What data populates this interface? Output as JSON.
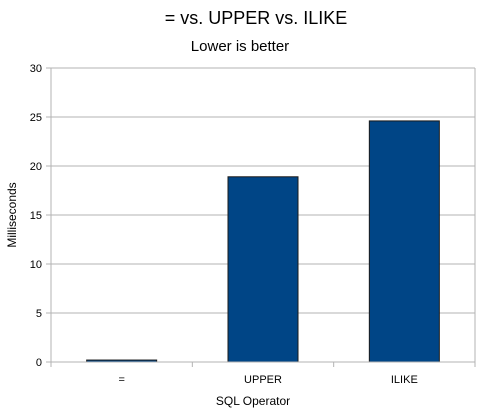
{
  "chart_data": {
    "type": "bar",
    "title": "= vs. UPPER vs. ILIKE",
    "subtitle": "Lower is better",
    "xlabel": "SQL Operator",
    "ylabel": "Milliseconds",
    "categories": [
      "=",
      "UPPER",
      "ILIKE"
    ],
    "values": [
      0.2,
      18.9,
      24.6
    ],
    "ylim": [
      0,
      30
    ],
    "yticks": [
      "0",
      "5",
      "10",
      "15",
      "20",
      "25",
      "30"
    ],
    "grid": true,
    "legend": "none",
    "colors": {
      "bar_fill": "#004586",
      "bar_stroke": "#1a1a1a",
      "grid": "#b3b3b3",
      "axis": "#b3b3b3"
    }
  }
}
